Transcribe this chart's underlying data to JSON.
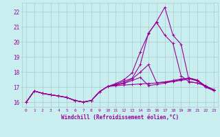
{
  "xlabel": "Windchill (Refroidissement éolien,°C)",
  "background_color": "#c8eef0",
  "line_color": "#990099",
  "grid_color": "#b0c8c8",
  "xlim": [
    -0.5,
    23.5
  ],
  "ylim": [
    15.7,
    22.6
  ],
  "xticks": [
    0,
    1,
    2,
    3,
    4,
    5,
    6,
    7,
    8,
    9,
    10,
    11,
    12,
    13,
    14,
    15,
    16,
    17,
    18,
    19,
    20,
    21,
    22,
    23
  ],
  "yticks": [
    16,
    17,
    18,
    19,
    20,
    21,
    22
  ],
  "lines": [
    [
      16.0,
      16.75,
      16.6,
      16.5,
      16.42,
      16.32,
      16.12,
      16.02,
      16.12,
      16.7,
      17.05,
      17.1,
      17.15,
      17.18,
      17.22,
      17.25,
      17.28,
      17.35,
      17.38,
      17.45,
      17.55,
      17.42,
      17.0,
      16.78
    ],
    [
      16.0,
      16.75,
      16.6,
      16.5,
      16.42,
      16.32,
      16.12,
      16.02,
      16.12,
      16.7,
      17.05,
      17.15,
      17.25,
      17.45,
      17.65,
      17.12,
      17.18,
      17.28,
      17.38,
      17.52,
      17.62,
      17.48,
      17.08,
      16.82
    ],
    [
      16.0,
      16.75,
      16.6,
      16.5,
      16.42,
      16.32,
      16.12,
      16.02,
      16.12,
      16.7,
      17.05,
      17.15,
      17.3,
      17.55,
      18.0,
      18.5,
      17.3,
      17.35,
      17.45,
      17.55,
      17.6,
      17.45,
      17.05,
      16.8
    ],
    [
      16.0,
      16.75,
      16.6,
      16.5,
      16.42,
      16.32,
      16.12,
      16.02,
      16.12,
      16.7,
      17.05,
      17.2,
      17.4,
      17.6,
      18.5,
      20.6,
      21.3,
      20.45,
      19.9,
      17.75,
      17.35,
      17.28,
      17.08,
      16.85
    ],
    [
      16.0,
      16.75,
      16.6,
      16.5,
      16.42,
      16.32,
      16.12,
      16.02,
      16.12,
      16.7,
      17.05,
      17.25,
      17.5,
      17.95,
      19.35,
      20.55,
      21.35,
      22.3,
      20.45,
      19.85,
      17.38,
      17.28,
      17.1,
      16.82
    ]
  ]
}
